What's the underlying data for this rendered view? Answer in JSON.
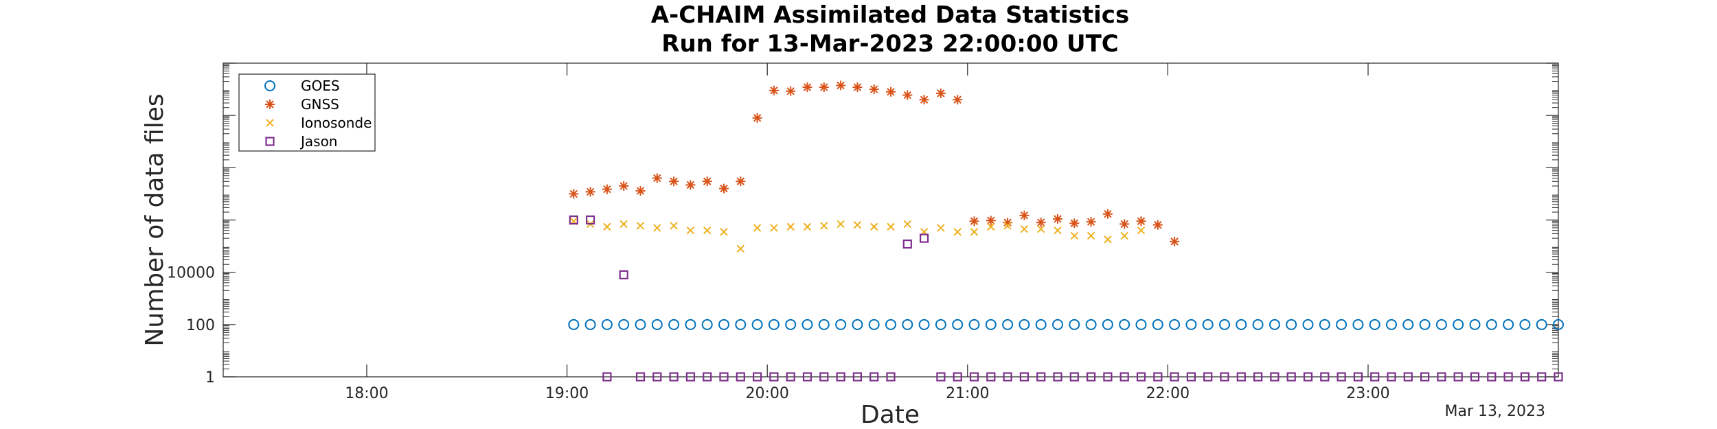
{
  "chart_data": {
    "type": "scatter",
    "title": "A-CHAIM Assimilated Data Statistics",
    "subtitle": "Run for 13-Mar-2023 22:00:00 UTC",
    "xlabel": "Date",
    "ylabel": "Number of data files",
    "date_note": "Mar 13, 2023",
    "xlim": [
      "17:17",
      "23:57"
    ],
    "x_ticks": [
      "18:00",
      "19:00",
      "20:00",
      "21:00",
      "22:00",
      "23:00"
    ],
    "y_scale": "log",
    "ylim": [
      1,
      1000000000000.0
    ],
    "y_ticks": [
      {
        "value": 1,
        "label": "1"
      },
      {
        "value": 100,
        "label": "100"
      },
      {
        "value": 10000,
        "label": "10000"
      }
    ],
    "legend_position": "top-left",
    "series": [
      {
        "name": "GOES",
        "marker": "circle",
        "color": "#0072BD",
        "x": [
          "19:02",
          "19:07",
          "19:12",
          "19:17",
          "19:22",
          "19:27",
          "19:32",
          "19:37",
          "19:42",
          "19:47",
          "19:52",
          "19:57",
          "20:02",
          "20:07",
          "20:12",
          "20:17",
          "20:22",
          "20:27",
          "20:32",
          "20:37",
          "20:42",
          "20:47",
          "20:52",
          "20:57",
          "21:02",
          "21:07",
          "21:12",
          "21:17",
          "21:22",
          "21:27",
          "21:32",
          "21:37",
          "21:42",
          "21:47",
          "21:52",
          "21:57",
          "22:02",
          "22:07",
          "22:12",
          "22:17",
          "22:22",
          "22:27",
          "22:32",
          "22:37",
          "22:42",
          "22:47",
          "22:52",
          "22:57",
          "23:02",
          "23:07",
          "23:12",
          "23:17",
          "23:22",
          "23:27",
          "23:32",
          "23:37",
          "23:42",
          "23:47",
          "23:52",
          "23:57"
        ],
        "y": [
          100,
          100,
          100,
          100,
          100,
          100,
          100,
          100,
          100,
          100,
          100,
          100,
          100,
          100,
          100,
          100,
          100,
          100,
          100,
          100,
          100,
          100,
          100,
          100,
          100,
          100,
          100,
          100,
          100,
          100,
          100,
          100,
          100,
          100,
          100,
          100,
          100,
          100,
          100,
          100,
          100,
          100,
          100,
          100,
          100,
          100,
          100,
          100,
          100,
          100,
          100,
          100,
          100,
          100,
          100,
          100,
          100,
          100,
          100,
          100
        ]
      },
      {
        "name": "GNSS",
        "marker": "star",
        "color": "#D95319",
        "x": [
          "19:02",
          "19:07",
          "19:12",
          "19:17",
          "19:22",
          "19:27",
          "19:32",
          "19:37",
          "19:42",
          "19:47",
          "19:52",
          "19:57",
          "20:02",
          "20:07",
          "20:12",
          "20:17",
          "20:22",
          "20:27",
          "20:32",
          "20:37",
          "20:42",
          "20:47",
          "20:52",
          "20:57",
          "21:02",
          "21:07",
          "21:12",
          "21:17",
          "21:22",
          "21:27",
          "21:32",
          "21:37",
          "21:42",
          "21:47",
          "21:52",
          "21:57",
          "22:02"
        ],
        "y": [
          10000000,
          12000000,
          15000000,
          20000000,
          13000000,
          40000000,
          30000000,
          22000000,
          30000000,
          16000000,
          30000000,
          8000000000,
          90000000000,
          85000000000,
          120000000000,
          120000000000,
          140000000000,
          120000000000,
          100000000000,
          80000000000,
          60000000000,
          40000000000,
          70000000000,
          40000000000,
          900000,
          950000,
          800000,
          1500000,
          800000,
          1100000,
          750000,
          850000,
          1700000,
          700000,
          900000,
          650000,
          150000
        ]
      },
      {
        "name": "Ionosonde",
        "marker": "x",
        "color": "#EDB120",
        "x": [
          "19:02",
          "19:07",
          "19:12",
          "19:17",
          "19:22",
          "19:27",
          "19:32",
          "19:37",
          "19:42",
          "19:47",
          "19:52",
          "19:57",
          "20:02",
          "20:07",
          "20:12",
          "20:17",
          "20:22",
          "20:27",
          "20:32",
          "20:37",
          "20:42",
          "20:47",
          "20:52",
          "20:57",
          "21:02",
          "21:07",
          "21:12",
          "21:17",
          "21:22",
          "21:27",
          "21:32",
          "21:37",
          "21:42",
          "21:47",
          "21:52"
        ],
        "y": [
          900000,
          700000,
          550000,
          700000,
          600000,
          500000,
          600000,
          400000,
          400000,
          350000,
          80000,
          500000,
          500000,
          550000,
          550000,
          600000,
          700000,
          650000,
          550000,
          550000,
          700000,
          350000,
          500000,
          350000,
          350000,
          550000,
          600000,
          450000,
          450000,
          400000,
          250000,
          250000,
          180000,
          250000,
          400000
        ]
      },
      {
        "name": "Jason",
        "marker": "square",
        "color": "#7E2F8E",
        "x": [
          "19:02",
          "19:07",
          "19:12",
          "19:17",
          "19:22",
          "19:27",
          "19:32",
          "19:37",
          "19:42",
          "19:47",
          "19:52",
          "19:57",
          "20:02",
          "20:07",
          "20:12",
          "20:17",
          "20:22",
          "20:27",
          "20:32",
          "20:37",
          "20:42",
          "20:47",
          "20:52",
          "20:57",
          "21:02",
          "21:07",
          "21:12",
          "21:17",
          "21:22",
          "21:27",
          "21:32",
          "21:37",
          "21:42",
          "21:47",
          "21:52",
          "21:57",
          "22:02",
          "22:07",
          "22:12",
          "22:17",
          "22:22",
          "22:27",
          "22:32",
          "22:37",
          "22:42",
          "22:47",
          "22:52",
          "22:57",
          "23:02",
          "23:07",
          "23:12",
          "23:17",
          "23:22",
          "23:27",
          "23:32",
          "23:37",
          "23:42",
          "23:47",
          "23:52",
          "23:57"
        ],
        "y": [
          1000000,
          1000000,
          1,
          8000,
          1,
          1,
          1,
          1,
          1,
          1,
          1,
          1,
          1,
          1,
          1,
          1,
          1,
          1,
          1,
          1,
          120000,
          200000,
          1,
          1,
          1,
          1,
          1,
          1,
          1,
          1,
          1,
          1,
          1,
          1,
          1,
          1,
          1,
          1,
          1,
          1,
          1,
          1,
          1,
          1,
          1,
          1,
          1,
          1,
          1,
          1,
          1,
          1,
          1,
          1,
          1,
          1,
          1,
          1,
          1,
          1
        ]
      }
    ]
  }
}
